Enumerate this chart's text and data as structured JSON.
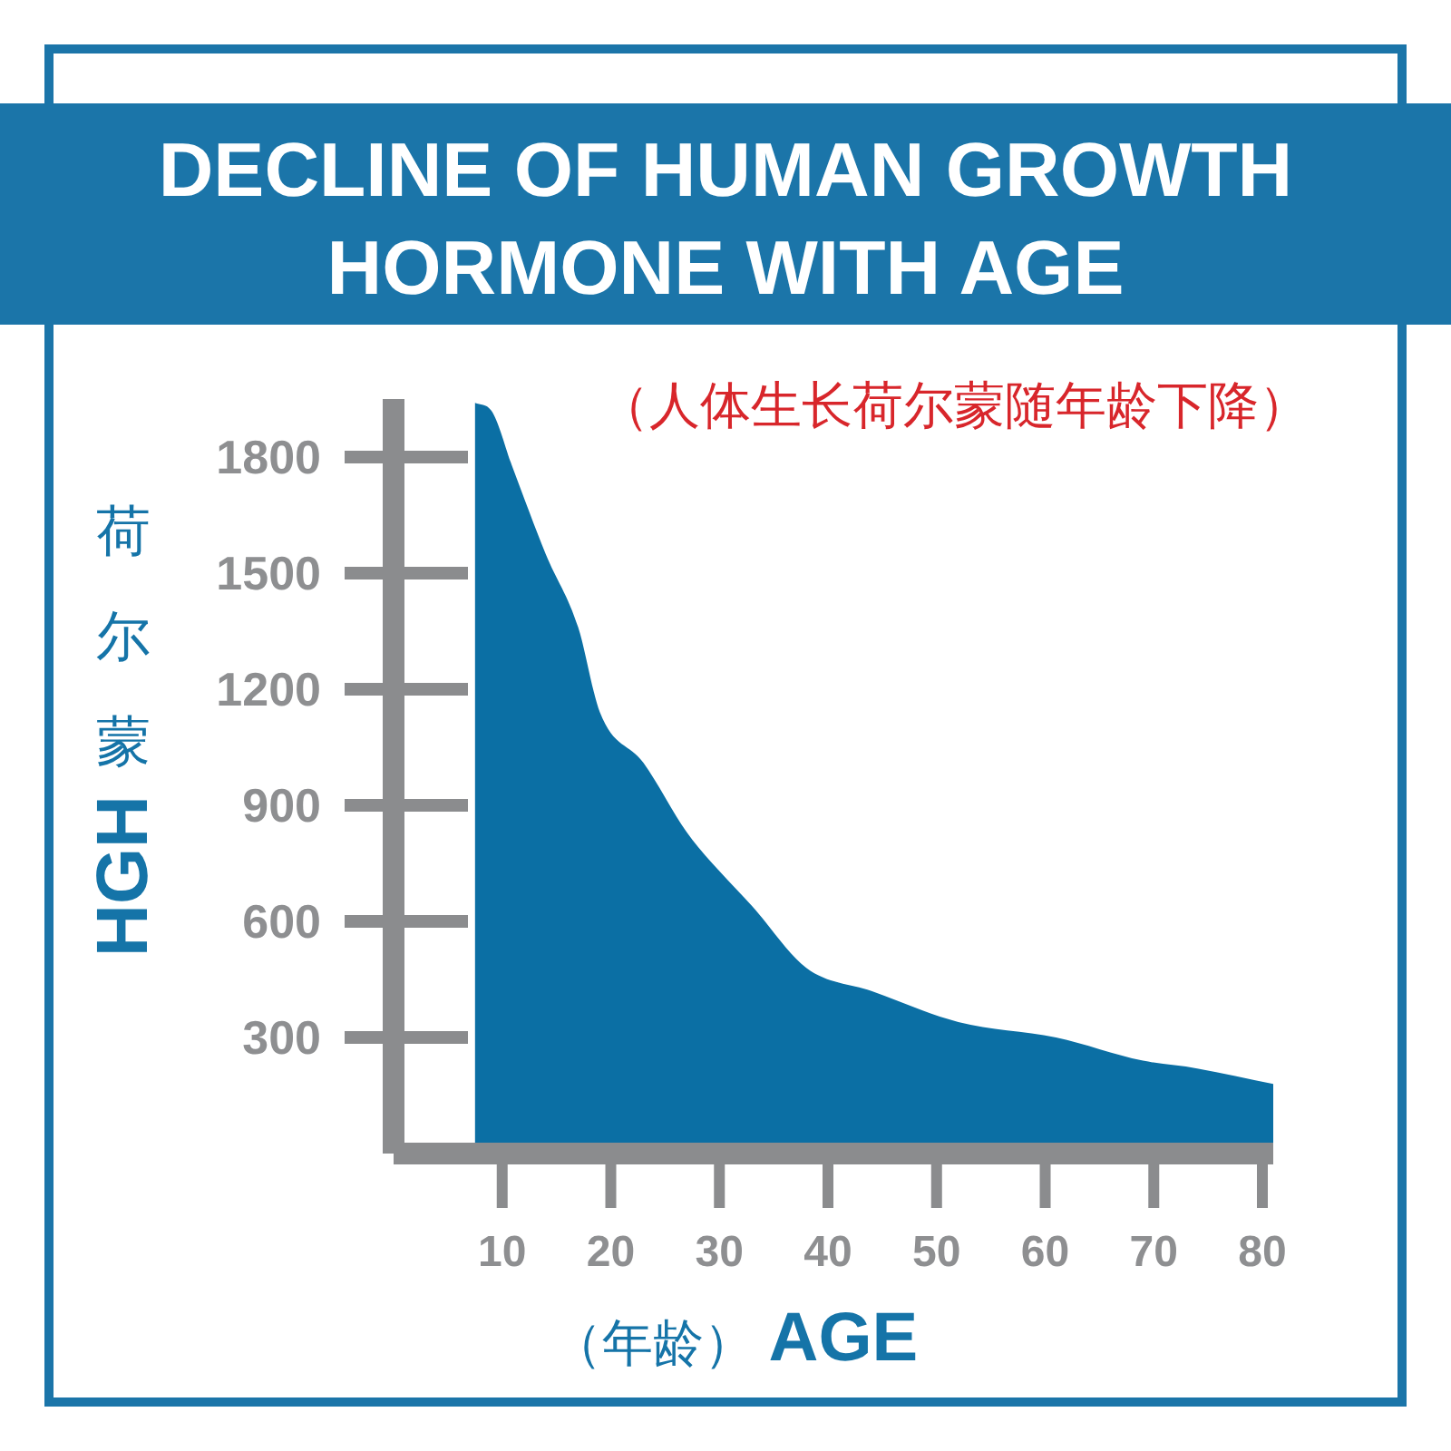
{
  "chart_data": {
    "type": "area",
    "title": "DECLINE OF HUMAN GROWTH HORMONE WITH AGE",
    "subtitle": "（人体生长荷尔蒙随年龄下降）",
    "xlabel": "（年龄） AGE",
    "ylabel": "荷尔蒙HGH",
    "x": [
      7.5,
      9,
      11,
      14,
      17,
      19,
      23,
      27,
      30,
      33,
      38,
      44,
      52,
      61,
      69,
      74,
      81
    ],
    "values": [
      1940,
      1920,
      1770,
      1550,
      1360,
      1140,
      1010,
      830,
      730,
      640,
      480,
      420,
      340,
      300,
      240,
      220,
      180
    ],
    "color": "#0b6fa4",
    "xlim": [
      0,
      81
    ],
    "ylim": [
      0,
      1950
    ],
    "xticks": [
      10,
      20,
      30,
      40,
      50,
      60,
      70,
      80
    ],
    "yticks": [
      300,
      600,
      900,
      1200,
      1500,
      1800
    ]
  }
}
